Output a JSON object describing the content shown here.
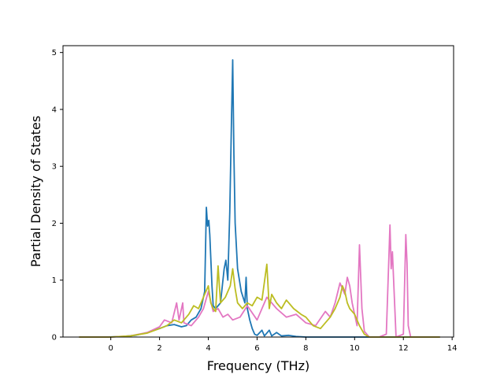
{
  "chart_data": {
    "type": "line",
    "title": "",
    "xlabel": "Frequency (THz)",
    "ylabel": "Partial Density of States",
    "xlim": [
      -1.96,
      14.06
    ],
    "ylim": [
      0,
      5.12
    ],
    "xticks": [
      0,
      2,
      4,
      6,
      8,
      10,
      12,
      14
    ],
    "yticks": [
      0,
      1,
      2,
      3,
      4,
      5
    ],
    "grid": false,
    "legend": "none",
    "series": [
      {
        "color": "#1f77b4",
        "x": [
          -1.3,
          -0.2,
          0.5,
          1.0,
          1.5,
          2.0,
          2.3,
          2.6,
          2.9,
          3.1,
          3.3,
          3.5,
          3.7,
          3.85,
          3.92,
          3.97,
          4.02,
          4.06,
          4.1,
          4.15,
          4.2,
          4.3,
          4.5,
          4.65,
          4.72,
          4.8,
          4.88,
          4.95,
          5.0,
          5.05,
          5.1,
          5.2,
          5.35,
          5.5,
          5.55,
          5.6,
          5.7,
          5.8,
          5.9,
          6.0,
          6.2,
          6.3,
          6.5,
          6.6,
          6.8,
          7.0,
          7.3,
          7.6,
          8.0,
          9.0,
          10.0,
          11.0,
          12.0,
          13.0,
          13.5
        ],
        "y": [
          0,
          0,
          0.01,
          0.03,
          0.08,
          0.15,
          0.2,
          0.22,
          0.18,
          0.2,
          0.3,
          0.35,
          0.5,
          0.8,
          2.28,
          1.95,
          2.05,
          1.8,
          1.4,
          0.9,
          0.55,
          0.5,
          0.6,
          1.2,
          1.35,
          1.0,
          2.2,
          3.8,
          4.87,
          3.2,
          2.0,
          1.2,
          0.8,
          0.6,
          1.05,
          0.5,
          0.3,
          0.15,
          0.05,
          0.03,
          0.12,
          0.02,
          0.12,
          0.02,
          0.08,
          0.02,
          0.03,
          0.01,
          0,
          0,
          0,
          0,
          0,
          0,
          0
        ]
      },
      {
        "color": "#e377c2",
        "x": [
          -1.3,
          0.0,
          0.8,
          1.5,
          2.0,
          2.2,
          2.5,
          2.7,
          2.8,
          2.95,
          3.0,
          3.3,
          3.6,
          3.8,
          4.0,
          4.2,
          4.4,
          4.6,
          4.8,
          5.0,
          5.3,
          5.6,
          6.0,
          6.4,
          6.8,
          7.2,
          7.6,
          8.0,
          8.4,
          8.8,
          9.0,
          9.2,
          9.4,
          9.6,
          9.7,
          9.8,
          9.9,
          10.1,
          10.2,
          10.3,
          10.4,
          10.6,
          11.0,
          11.3,
          11.45,
          11.5,
          11.55,
          11.7,
          12.0,
          12.1,
          12.15,
          12.2,
          12.3,
          12.6,
          13.0,
          13.5
        ],
        "y": [
          0,
          0,
          0.02,
          0.08,
          0.18,
          0.3,
          0.25,
          0.6,
          0.3,
          0.6,
          0.25,
          0.2,
          0.35,
          0.5,
          0.8,
          0.45,
          0.5,
          0.35,
          0.4,
          0.3,
          0.35,
          0.55,
          0.3,
          0.7,
          0.5,
          0.35,
          0.4,
          0.25,
          0.2,
          0.45,
          0.35,
          0.6,
          0.95,
          0.75,
          1.05,
          0.9,
          0.6,
          0.2,
          1.62,
          0.5,
          0.1,
          0,
          0,
          0.05,
          1.97,
          1.2,
          1.5,
          0,
          0.05,
          1.8,
          1.3,
          0.2,
          0,
          0,
          0,
          0
        ]
      },
      {
        "color": "#bcbd22",
        "x": [
          -1.3,
          0.0,
          0.8,
          1.5,
          2.0,
          2.3,
          2.6,
          2.9,
          3.2,
          3.4,
          3.6,
          3.8,
          4.0,
          4.1,
          4.2,
          4.3,
          4.4,
          4.5,
          4.7,
          4.9,
          5.0,
          5.1,
          5.2,
          5.4,
          5.6,
          5.8,
          6.0,
          6.2,
          6.4,
          6.5,
          6.6,
          6.8,
          7.0,
          7.2,
          7.5,
          7.8,
          8.0,
          8.3,
          8.6,
          8.8,
          9.0,
          9.2,
          9.4,
          9.5,
          9.6,
          9.7,
          9.8,
          10.0,
          10.2,
          10.4,
          10.6,
          11.0,
          12.0,
          13.5
        ],
        "y": [
          0,
          0,
          0.02,
          0.07,
          0.15,
          0.2,
          0.3,
          0.25,
          0.4,
          0.55,
          0.5,
          0.7,
          0.9,
          0.6,
          0.5,
          0.45,
          1.25,
          0.6,
          0.7,
          0.9,
          1.2,
          0.85,
          0.6,
          0.5,
          0.6,
          0.55,
          0.7,
          0.65,
          1.28,
          0.5,
          0.75,
          0.6,
          0.5,
          0.65,
          0.5,
          0.4,
          0.35,
          0.2,
          0.15,
          0.25,
          0.35,
          0.5,
          0.7,
          0.9,
          0.8,
          0.6,
          0.5,
          0.4,
          0.2,
          0.05,
          0,
          0,
          0,
          0
        ]
      }
    ]
  }
}
